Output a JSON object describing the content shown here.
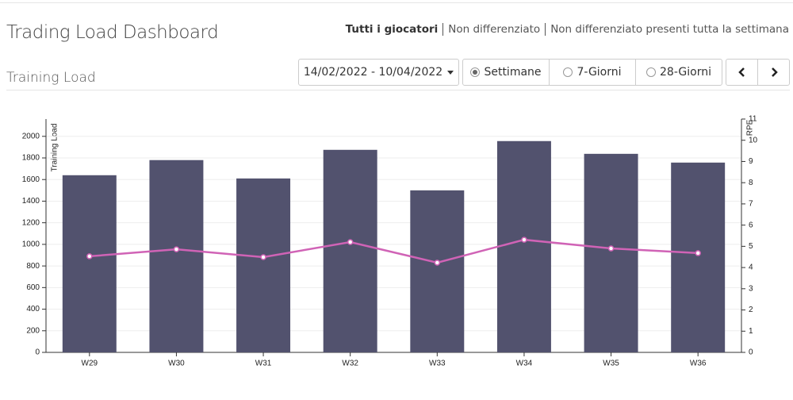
{
  "header": {
    "title": "Trading Load Dashboard",
    "filters": [
      "Tutti i giocatori",
      "Non differenziato",
      "Non differenziato presenti tutta la settimana"
    ]
  },
  "section_title": "Training Load",
  "controls": {
    "date_range": "14/02/2022 - 10/04/2022",
    "periods": [
      "Settimane",
      "7-Giorni",
      "28-Giorni"
    ]
  },
  "chart_data": {
    "type": "bar",
    "categories": [
      "W29",
      "W30",
      "W31",
      "W32",
      "W33",
      "W34",
      "W35",
      "W36"
    ],
    "series": [
      {
        "type": "bar",
        "color": "#52526e",
        "values": [
          1640,
          1780,
          1610,
          1875,
          1500,
          1956,
          1838,
          1757
        ]
      },
      {
        "type": "line",
        "axis": "y2",
        "color": "#d063b6",
        "values": [
          4.53,
          4.86,
          4.49,
          5.2,
          4.23,
          5.31,
          4.9,
          4.68
        ]
      }
    ],
    "ylabel": "Training Load",
    "y2label": "RPE",
    "ylim": [
      0,
      2160
    ],
    "yticks": [
      0,
      200,
      400,
      600,
      800,
      1000,
      1200,
      1400,
      1600,
      1800,
      2000
    ],
    "y2lim": [
      0,
      11
    ],
    "y2ticks": [
      0,
      1,
      2,
      3,
      4,
      5,
      6,
      7,
      8,
      9,
      10,
      11
    ],
    "grid": true
  }
}
